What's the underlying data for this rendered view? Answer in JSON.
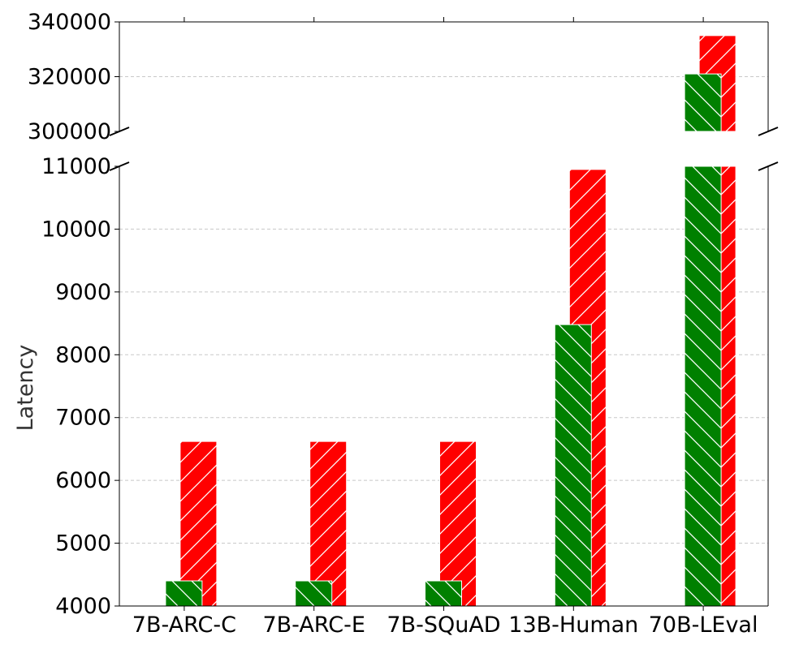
{
  "chart_data": {
    "type": "bar",
    "title": "",
    "xlabel": "",
    "ylabel": "Latency",
    "categories": [
      "7B-ARC-C",
      "7B-ARC-E",
      "7B-SQuAD",
      "13B-Human",
      "70B-LEval"
    ],
    "series": [
      {
        "values": [
          4400,
          4400,
          4400,
          8480,
          321000
        ],
        "color": "#008000",
        "hatch": "backslash"
      },
      {
        "values": [
          6620,
          6620,
          6620,
          10950,
          335000
        ],
        "color": "#ff0000",
        "hatch": "slash"
      }
    ],
    "broken_axis": {
      "upper_ylim": [
        300000,
        340000
      ],
      "lower_ylim": [
        4000,
        11000
      ]
    },
    "upper_yticks": [
      300000,
      320000,
      340000
    ],
    "lower_yticks": [
      4000,
      5000,
      6000,
      7000,
      8000,
      9000,
      10000,
      11000
    ],
    "grid": "y-dashed"
  }
}
